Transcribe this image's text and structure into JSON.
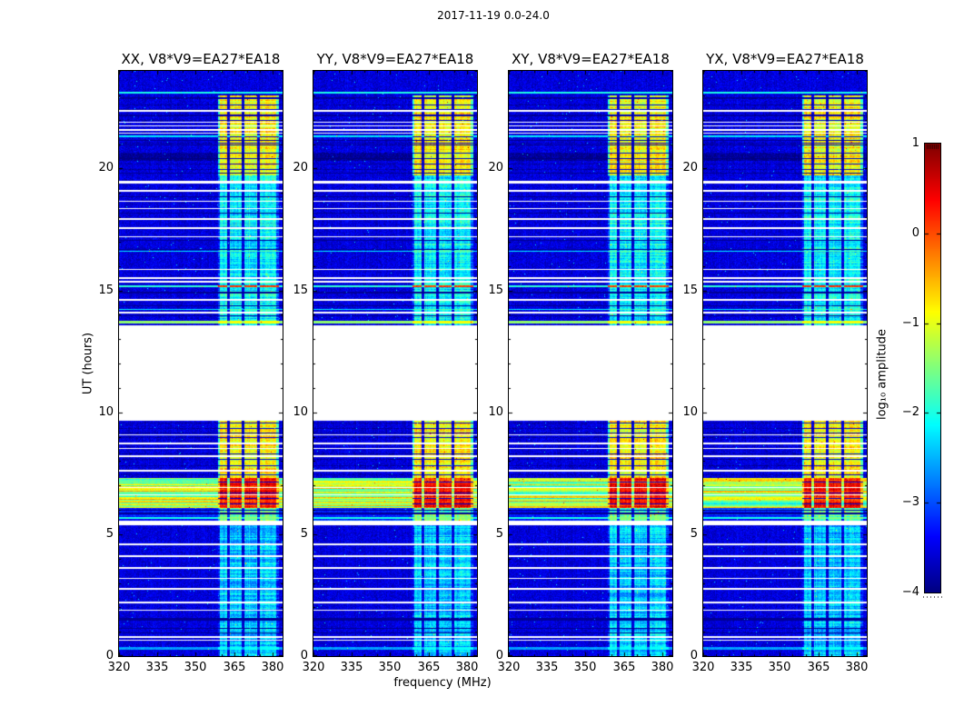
{
  "figure": {
    "background": "#ffffff"
  },
  "chart_data": {
    "type": "heatmap",
    "title": "2017-11-19 0.0-24.0",
    "xlabel": "frequency (MHz)",
    "ylabel": "UT (hours)",
    "colorbar_label": "log₁₀ amplitude",
    "colormap": "jet",
    "x_range_mhz": [
      320,
      384
    ],
    "x_ticks": [
      320,
      335,
      350,
      365,
      380
    ],
    "x_minor_step_mhz": 5,
    "y_range_hours": [
      0,
      24
    ],
    "y_ticks": [
      0,
      5,
      10,
      15,
      20
    ],
    "y_minor_step_hours": 1,
    "color_range_log10": [
      -4,
      1
    ],
    "colorbar_ticks": [
      1,
      0,
      -1,
      -2,
      -3,
      -4
    ],
    "panels": [
      {
        "pol": "XX",
        "title": "XX, V8*V9=EA27*EA18",
        "seed": 101
      },
      {
        "pol": "YY",
        "title": "YY, V8*V9=EA27*EA18",
        "seed": 202
      },
      {
        "pol": "XY",
        "title": "XY, V8*V9=EA27*EA18",
        "seed": 303
      },
      {
        "pol": "YX",
        "title": "YX, V8*V9=EA27*EA18",
        "seed": 404
      }
    ],
    "background_log_amp": -3.55,
    "no_data_gap_hours": [
      9.69,
      13.57
    ],
    "rfi_band": {
      "start_mhz": 358.7,
      "end_mhz": 382.4,
      "start_frac": 0.605,
      "end_frac": 0.975,
      "gaps_frac": [
        [
          0.662,
          0.678
        ],
        [
          0.748,
          0.764
        ],
        [
          0.845,
          0.862
        ]
      ]
    },
    "regions": [
      {
        "ut": [
          23.0,
          24.01
        ],
        "band_amp": null
      },
      {
        "ut": [
          19.7,
          23.0
        ],
        "band_amp": -0.85,
        "band_var": 0.5
      },
      {
        "ut": [
          13.57,
          19.7
        ],
        "band_amp": -2.1,
        "band_var": 0.45
      },
      {
        "ut": [
          7.3,
          9.69
        ],
        "band_amp": -0.8,
        "band_var": 0.5
      },
      {
        "ut": [
          6.08,
          7.3
        ],
        "band_amp": 0.3,
        "band_var": 0.4,
        "out_amp": -1.25,
        "out_var": 0.8
      },
      {
        "ut": [
          5.5,
          6.08
        ],
        "band_amp": -1.6,
        "band_var": 0.5,
        "out_amp": -3.2,
        "out_var": 0.3
      },
      {
        "ut": [
          0,
          5.5
        ],
        "band_amp": -2.35,
        "band_var": 0.45
      }
    ],
    "dark_band_hours": [
      20.3,
      20.6
    ],
    "white_lines": [
      {
        "ut": 22.36,
        "w": 2
      },
      {
        "ut": 21.9,
        "w": 1
      },
      {
        "ut": 21.75,
        "w": 1
      },
      {
        "ut": 21.58,
        "w": 2
      },
      {
        "ut": 21.45,
        "w": 1
      },
      {
        "ut": 19.45,
        "w": 3
      },
      {
        "ut": 19.08,
        "w": 2
      },
      {
        "ut": 18.67,
        "w": 1
      },
      {
        "ut": 18.35,
        "w": 1
      },
      {
        "ut": 17.93,
        "w": 2
      },
      {
        "ut": 17.55,
        "w": 2
      },
      {
        "ut": 17.2,
        "w": 1
      },
      {
        "ut": 15.85,
        "w": 1
      },
      {
        "ut": 15.52,
        "w": 2
      },
      {
        "ut": 15.37,
        "w": 2
      },
      {
        "ut": 14.6,
        "w": 2
      },
      {
        "ut": 14.08,
        "w": 2
      },
      {
        "ut": 9.06,
        "w": 1
      },
      {
        "ut": 8.72,
        "w": 2
      },
      {
        "ut": 8.5,
        "w": 1
      },
      {
        "ut": 8.2,
        "w": 2
      },
      {
        "ut": 7.6,
        "w": 2
      },
      {
        "ut": 6.9,
        "w": 1
      },
      {
        "ut": 6.6,
        "w": 1
      },
      {
        "ut": 5.45,
        "w": 5
      },
      {
        "ut": 4.6,
        "w": 2
      },
      {
        "ut": 4.1,
        "w": 2
      },
      {
        "ut": 3.62,
        "w": 2
      },
      {
        "ut": 3.2,
        "w": 1
      },
      {
        "ut": 2.76,
        "w": 2
      },
      {
        "ut": 2.2,
        "w": 2
      },
      {
        "ut": 1.9,
        "w": 1
      },
      {
        "ut": 0.78,
        "w": 2
      },
      {
        "ut": 0.65,
        "w": 1
      }
    ],
    "black_lines": [
      {
        "ut": 22.9,
        "w": 1
      },
      {
        "ut": 22.15,
        "w": 1
      },
      {
        "ut": 21.15,
        "w": 1
      },
      {
        "ut": 20.95,
        "w": 1
      },
      {
        "ut": 19.8,
        "w": 1
      },
      {
        "ut": 18.85,
        "w": 1
      },
      {
        "ut": 18.15,
        "w": 1
      },
      {
        "ut": 17.05,
        "w": 1
      },
      {
        "ut": 16.66,
        "w": 1
      },
      {
        "ut": 14.92,
        "w": 2
      },
      {
        "ut": 14.35,
        "w": 1
      },
      {
        "ut": 13.95,
        "w": 1
      },
      {
        "ut": 6.0,
        "w": 1
      },
      {
        "ut": 5.85,
        "w": 2
      },
      {
        "ut": 1.5,
        "w": 3
      },
      {
        "ut": 1.15,
        "w": 1
      },
      {
        "ut": 0.95,
        "w": 1
      }
    ],
    "bright_lines": [
      {
        "ut": 23.1,
        "w": 2,
        "amp": -2.0
      },
      {
        "ut": 21.3,
        "w": 2,
        "amp": -2.1
      },
      {
        "ut": 16.6,
        "w": 1,
        "amp": -2.2
      },
      {
        "ut": 14.23,
        "w": 1,
        "amp": -2.2
      },
      {
        "ut": 13.7,
        "w": 3,
        "amp": -1.4
      },
      {
        "ut": 5.66,
        "w": 2,
        "amp": -2.0
      },
      {
        "ut": 0.3,
        "w": 3,
        "amp": -2.6
      }
    ],
    "special_lines": [
      {
        "ut": 15.17,
        "w": 2,
        "out_amp": -1.9,
        "in_amp": 0.1
      }
    ],
    "grid_separators": [
      22.85,
      22.62,
      22.42,
      22.2,
      21.98,
      21.28,
      21.05,
      20.62,
      20.4,
      20.18,
      19.95,
      9.55,
      9.35,
      9.15,
      8.95,
      8.72,
      8.5,
      8.28,
      8.05,
      7.82,
      7.45,
      7.15,
      6.92,
      6.7,
      6.48,
      6.25
    ]
  }
}
